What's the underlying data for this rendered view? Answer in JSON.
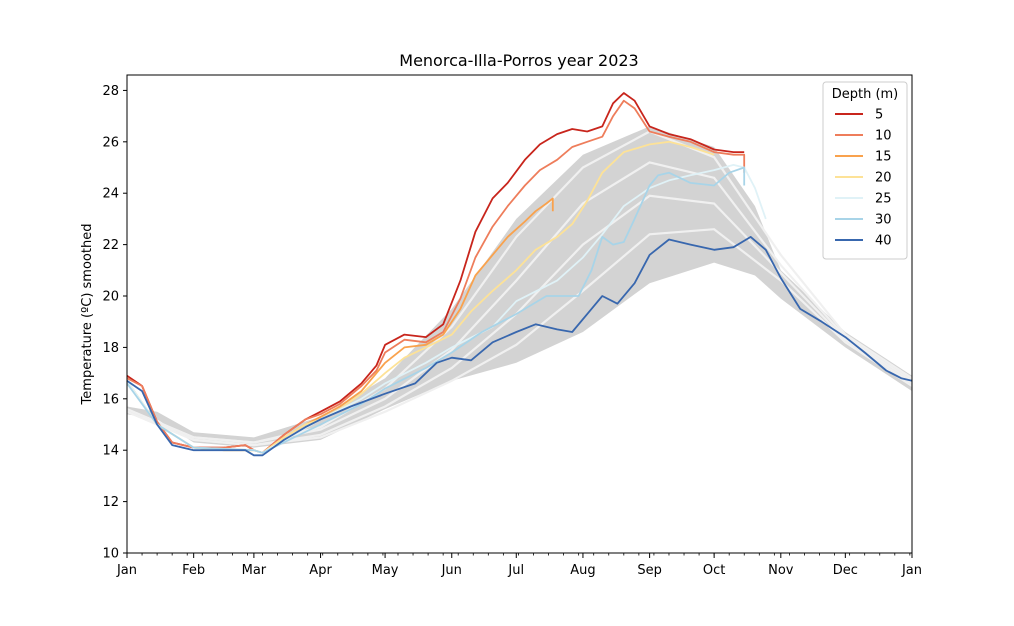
{
  "chart_data": {
    "type": "line",
    "title": "Menorca-Illa-Porros year 2023",
    "xlabel": "",
    "ylabel": "Temperature (ºC) smoothed",
    "ylim": [
      10,
      28.6
    ],
    "xlim": [
      "2023-01-01",
      "2024-01-01"
    ],
    "yticks": [
      10,
      12,
      14,
      16,
      18,
      20,
      22,
      24,
      26,
      28
    ],
    "xticks": [
      {
        "date": "2023-01-01",
        "label": "Jan"
      },
      {
        "date": "2023-02-01",
        "label": "Feb"
      },
      {
        "date": "2023-03-01",
        "label": "Mar"
      },
      {
        "date": "2023-04-01",
        "label": "Apr"
      },
      {
        "date": "2023-05-01",
        "label": "May"
      },
      {
        "date": "2023-06-01",
        "label": "Jun"
      },
      {
        "date": "2023-07-01",
        "label": "Jul"
      },
      {
        "date": "2023-08-01",
        "label": "Aug"
      },
      {
        "date": "2023-09-01",
        "label": "Sep"
      },
      {
        "date": "2023-10-01",
        "label": "Oct"
      },
      {
        "date": "2023-11-01",
        "label": "Nov"
      },
      {
        "date": "2023-12-01",
        "label": "Dec"
      },
      {
        "date": "2024-01-01",
        "label": "Jan"
      }
    ],
    "grid": false,
    "legend": {
      "title": "Depth (m)",
      "placement": "top-right"
    },
    "climatology_band": {
      "color": "#d3d3d3",
      "x": [
        "2023-01-01",
        "2023-01-15",
        "2023-02-01",
        "2023-03-01",
        "2023-04-01",
        "2023-05-01",
        "2023-06-01",
        "2023-07-01",
        "2023-08-01",
        "2023-09-01",
        "2023-10-01",
        "2023-10-20",
        "2023-11-01",
        "2023-12-01",
        "2024-01-01"
      ],
      "upper": [
        15.7,
        15.5,
        14.7,
        14.5,
        15.3,
        16.8,
        19.5,
        23.0,
        25.5,
        26.6,
        25.8,
        23.5,
        21.0,
        18.6,
        16.9
      ],
      "lower": [
        15.4,
        15.2,
        14.3,
        14.1,
        14.4,
        15.6,
        16.7,
        17.4,
        18.6,
        20.5,
        21.3,
        20.8,
        19.9,
        18.0,
        16.3
      ]
    },
    "series": [
      {
        "name": "5",
        "color": "#c8251c",
        "x": [
          "2023-01-01",
          "2023-01-08",
          "2023-01-15",
          "2023-01-22",
          "2023-02-01",
          "2023-02-15",
          "2023-02-25",
          "2023-03-01",
          "2023-03-05",
          "2023-03-15",
          "2023-03-25",
          "2023-04-01",
          "2023-04-10",
          "2023-04-20",
          "2023-04-27",
          "2023-05-01",
          "2023-05-10",
          "2023-05-20",
          "2023-05-28",
          "2023-06-05",
          "2023-06-12",
          "2023-06-20",
          "2023-06-27",
          "2023-07-05",
          "2023-07-12",
          "2023-07-20",
          "2023-07-27",
          "2023-08-03",
          "2023-08-10",
          "2023-08-15",
          "2023-08-20",
          "2023-08-25",
          "2023-09-01",
          "2023-09-10",
          "2023-09-20",
          "2023-10-01",
          "2023-10-10",
          "2023-10-15"
        ],
        "values": [
          16.9,
          16.5,
          15.1,
          14.3,
          14.1,
          14.1,
          14.2,
          14.0,
          13.9,
          14.6,
          15.2,
          15.5,
          15.9,
          16.6,
          17.3,
          18.1,
          18.5,
          18.4,
          18.9,
          20.6,
          22.5,
          23.8,
          24.4,
          25.3,
          25.9,
          26.3,
          26.5,
          26.4,
          26.6,
          27.5,
          27.9,
          27.6,
          26.6,
          26.3,
          26.1,
          25.7,
          25.6,
          25.6
        ]
      },
      {
        "name": "10",
        "color": "#ee7d5b",
        "x": [
          "2023-01-01",
          "2023-01-08",
          "2023-01-15",
          "2023-01-22",
          "2023-02-01",
          "2023-02-15",
          "2023-02-25",
          "2023-03-01",
          "2023-03-05",
          "2023-03-15",
          "2023-03-25",
          "2023-04-01",
          "2023-04-10",
          "2023-04-20",
          "2023-04-27",
          "2023-05-01",
          "2023-05-10",
          "2023-05-20",
          "2023-05-28",
          "2023-06-05",
          "2023-06-12",
          "2023-06-20",
          "2023-06-27",
          "2023-07-05",
          "2023-07-12",
          "2023-07-20",
          "2023-07-27",
          "2023-08-03",
          "2023-08-10",
          "2023-08-15",
          "2023-08-20",
          "2023-08-25",
          "2023-09-01",
          "2023-09-10",
          "2023-09-20",
          "2023-10-01",
          "2023-10-10",
          "2023-10-15",
          "2023-10-15"
        ],
        "values": [
          16.8,
          16.5,
          15.1,
          14.3,
          14.1,
          14.1,
          14.2,
          14.0,
          13.9,
          14.6,
          15.2,
          15.4,
          15.8,
          16.5,
          17.1,
          17.8,
          18.3,
          18.2,
          18.6,
          19.9,
          21.5,
          22.7,
          23.5,
          24.3,
          24.9,
          25.3,
          25.8,
          26.0,
          26.2,
          27.0,
          27.6,
          27.3,
          26.4,
          26.2,
          26.0,
          25.6,
          25.5,
          25.5,
          24.8
        ]
      },
      {
        "name": "15",
        "color": "#f9a24d",
        "x": [
          "2023-01-01",
          "2023-01-15",
          "2023-02-01",
          "2023-02-15",
          "2023-03-01",
          "2023-03-05",
          "2023-03-15",
          "2023-03-25",
          "2023-04-01",
          "2023-04-10",
          "2023-04-20",
          "2023-05-01",
          "2023-05-10",
          "2023-05-20",
          "2023-05-28",
          "2023-06-05",
          "2023-06-12",
          "2023-06-20",
          "2023-06-27",
          "2023-07-05",
          "2023-07-10",
          "2023-07-15",
          "2023-07-18",
          "2023-07-18"
        ],
        "values": [
          16.7,
          15.0,
          14.1,
          14.0,
          14.0,
          13.9,
          14.5,
          15.0,
          15.3,
          15.7,
          16.3,
          17.4,
          18.0,
          18.1,
          18.5,
          19.5,
          20.8,
          21.6,
          22.3,
          22.9,
          23.3,
          23.6,
          23.8,
          23.3
        ]
      },
      {
        "name": "20",
        "color": "#fde297",
        "x": [
          "2023-01-01",
          "2023-01-15",
          "2023-02-01",
          "2023-02-15",
          "2023-03-01",
          "2023-03-05",
          "2023-03-15",
          "2023-03-25",
          "2023-04-01",
          "2023-04-10",
          "2023-04-20",
          "2023-05-01",
          "2023-05-10",
          "2023-05-20",
          "2023-06-01",
          "2023-06-10",
          "2023-06-20",
          "2023-07-01",
          "2023-07-10",
          "2023-07-20",
          "2023-07-27",
          "2023-08-03",
          "2023-08-10",
          "2023-08-20",
          "2023-09-01",
          "2023-09-10",
          "2023-09-20",
          "2023-10-01"
        ],
        "values": [
          16.7,
          15.0,
          14.1,
          14.0,
          14.0,
          13.9,
          14.5,
          15.0,
          15.2,
          15.6,
          16.2,
          17.0,
          17.6,
          18.0,
          18.5,
          19.4,
          20.2,
          21.0,
          21.8,
          22.3,
          22.8,
          23.7,
          24.8,
          25.6,
          25.9,
          26.0,
          25.8,
          25.5
        ]
      },
      {
        "name": "25",
        "color": "#e0f2f7",
        "x": [
          "2023-01-01",
          "2023-01-15",
          "2023-02-01",
          "2023-03-01",
          "2023-03-05",
          "2023-04-01",
          "2023-04-20",
          "2023-05-01",
          "2023-05-20",
          "2023-06-01",
          "2023-06-20",
          "2023-07-01",
          "2023-07-20",
          "2023-08-01",
          "2023-08-10",
          "2023-08-20",
          "2023-09-01",
          "2023-09-10",
          "2023-09-20",
          "2023-10-01",
          "2023-10-10",
          "2023-10-15",
          "2023-10-20",
          "2023-10-25"
        ],
        "values": [
          16.7,
          15.0,
          14.1,
          14.0,
          13.9,
          15.2,
          16.0,
          16.6,
          17.4,
          18.0,
          18.8,
          19.8,
          20.6,
          21.5,
          22.4,
          23.5,
          24.2,
          24.5,
          24.7,
          24.9,
          25.1,
          25.0,
          24.2,
          23.0
        ]
      },
      {
        "name": "30",
        "color": "#a8d4e8",
        "x": [
          "2023-01-01",
          "2023-01-15",
          "2023-02-01",
          "2023-03-01",
          "2023-03-05",
          "2023-04-01",
          "2023-04-20",
          "2023-05-01",
          "2023-05-20",
          "2023-06-01",
          "2023-06-15",
          "2023-07-01",
          "2023-07-15",
          "2023-07-30",
          "2023-08-05",
          "2023-08-10",
          "2023-08-15",
          "2023-08-20",
          "2023-08-25",
          "2023-09-01",
          "2023-09-05",
          "2023-09-10",
          "2023-09-20",
          "2023-10-01",
          "2023-10-08",
          "2023-10-15",
          "2023-10-15"
        ],
        "values": [
          16.6,
          15.0,
          14.1,
          14.0,
          13.9,
          15.0,
          15.8,
          16.4,
          17.2,
          17.8,
          18.6,
          19.3,
          20.0,
          20.0,
          21.0,
          22.3,
          22.0,
          22.1,
          23.0,
          24.3,
          24.7,
          24.8,
          24.4,
          24.3,
          24.8,
          25.0,
          24.3
        ]
      },
      {
        "name": "40",
        "color": "#3867ae",
        "x": [
          "2023-01-01",
          "2023-01-08",
          "2023-01-15",
          "2023-01-22",
          "2023-02-01",
          "2023-02-15",
          "2023-02-25",
          "2023-03-01",
          "2023-03-05",
          "2023-03-15",
          "2023-03-25",
          "2023-04-01",
          "2023-04-15",
          "2023-05-01",
          "2023-05-15",
          "2023-05-25",
          "2023-06-01",
          "2023-06-10",
          "2023-06-20",
          "2023-07-01",
          "2023-07-10",
          "2023-07-20",
          "2023-07-27",
          "2023-08-05",
          "2023-08-10",
          "2023-08-17",
          "2023-08-25",
          "2023-09-01",
          "2023-09-10",
          "2023-09-20",
          "2023-10-01",
          "2023-10-10",
          "2023-10-18",
          "2023-10-25",
          "2023-11-01",
          "2023-11-10",
          "2023-11-20",
          "2023-12-01",
          "2023-12-10",
          "2023-12-20",
          "2023-12-27",
          "2024-01-01"
        ],
        "values": [
          16.7,
          16.3,
          15.0,
          14.2,
          14.0,
          14.0,
          14.0,
          13.8,
          13.8,
          14.4,
          14.9,
          15.2,
          15.7,
          16.2,
          16.6,
          17.4,
          17.6,
          17.5,
          18.2,
          18.6,
          18.9,
          18.7,
          18.6,
          19.5,
          20.0,
          19.7,
          20.5,
          21.6,
          22.2,
          22.0,
          21.8,
          21.9,
          22.3,
          21.8,
          20.7,
          19.5,
          19.0,
          18.4,
          17.8,
          17.1,
          16.8,
          16.7
        ]
      }
    ],
    "climatology_lines": {
      "color": "#f0f0f0",
      "x": [
        "2023-01-01",
        "2023-02-01",
        "2023-03-01",
        "2023-04-01",
        "2023-05-01",
        "2023-06-01",
        "2023-07-01",
        "2023-08-01",
        "2023-09-01",
        "2023-10-01",
        "2023-11-01",
        "2023-12-01",
        "2024-01-01"
      ],
      "lines": [
        [
          15.6,
          14.5,
          14.3,
          14.9,
          16.4,
          18.8,
          22.3,
          25.0,
          26.4,
          25.4,
          21.6,
          18.5,
          16.8
        ],
        [
          15.6,
          14.5,
          14.3,
          14.8,
          16.0,
          17.9,
          20.6,
          23.6,
          25.2,
          24.6,
          21.2,
          18.4,
          16.7
        ],
        [
          15.5,
          14.4,
          14.2,
          14.6,
          15.7,
          17.2,
          19.3,
          22.0,
          23.9,
          23.6,
          20.9,
          18.3,
          16.6
        ],
        [
          15.5,
          14.4,
          14.2,
          14.5,
          15.5,
          16.7,
          18.1,
          20.2,
          22.4,
          22.6,
          20.6,
          18.2,
          16.5
        ]
      ]
    }
  }
}
